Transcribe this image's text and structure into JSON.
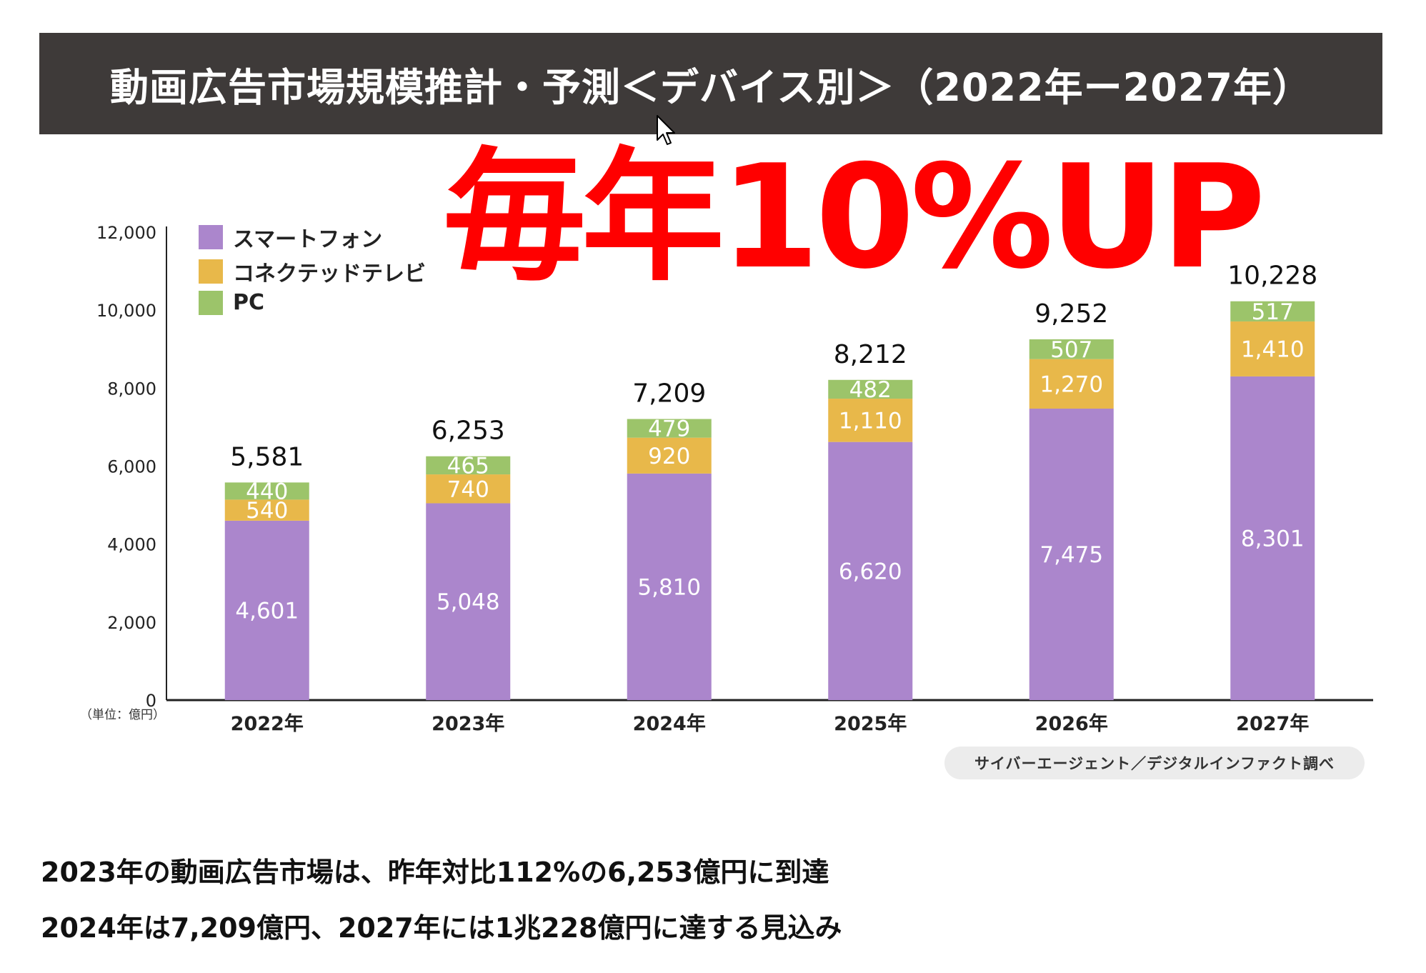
{
  "header": {
    "title": "動画広告市場規模推計・予測＜デバイス別＞（2022年ー2027年）"
  },
  "headline": "毎年10%UP",
  "chart_data": {
    "type": "bar",
    "stacked": true,
    "categories": [
      "2022年",
      "2023年",
      "2024年",
      "2025年",
      "2026年",
      "2027年"
    ],
    "series": [
      {
        "name": "スマートフォン",
        "values": [
          4601,
          5048,
          5810,
          6620,
          7475,
          8301
        ],
        "labels": [
          "4,601",
          "5,048",
          "5,810",
          "6,620",
          "7,475",
          "8,301"
        ],
        "color": "#ab86cc"
      },
      {
        "name": "コネクテッドテレビ",
        "values": [
          540,
          740,
          920,
          1110,
          1270,
          1410
        ],
        "labels": [
          "540",
          "740",
          "920",
          "1,110",
          "1,270",
          "1,410"
        ],
        "color": "#e8b84a"
      },
      {
        "name": "PC",
        "values": [
          440,
          465,
          479,
          482,
          507,
          517
        ],
        "labels": [
          "440",
          "465",
          "479",
          "482",
          "507",
          "517"
        ],
        "color": "#9cc46a"
      }
    ],
    "totals": [
      "5,581",
      "6,253",
      "7,209",
      "8,212",
      "9,252",
      "10,228"
    ],
    "yticks": [
      "0",
      "2,000",
      "4,000",
      "6,000",
      "8,000",
      "10,000",
      "12,000"
    ],
    "ylim": [
      0,
      12000
    ],
    "unit": "（単位：億円）",
    "legend_position": "top-left",
    "grid": false
  },
  "source": "サイバーエージェント／デジタルインファクト調べ",
  "summary": {
    "line1": "2023年の動画広告市場は、昨年対比112%の6,253億円に到達",
    "line2": "2024年は7,209億円、2027年には1兆228億円に達する見込み"
  }
}
